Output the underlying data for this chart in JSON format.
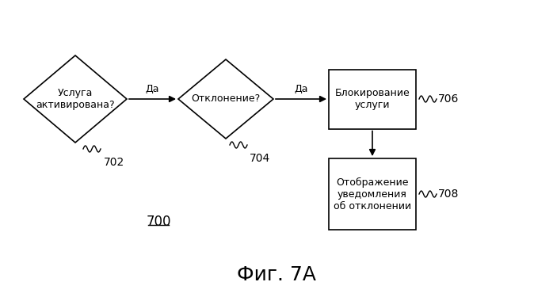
{
  "bg_color": "#ffffff",
  "title": "Фиг. 7А",
  "label_700": "700",
  "diamond1_text": "Услуга\nактивирована?",
  "diamond1_label": "702",
  "diamond2_text": "Отклонение?",
  "diamond2_label": "704",
  "box1_text": "Блокирование\nуслуги",
  "box1_label": "706",
  "box2_text": "Отображение\nуведомления\nоб отклонении",
  "box2_label": "708",
  "yes_label": "Да",
  "line_color": "#000000",
  "text_color": "#000000",
  "font_size": 9,
  "title_font_size": 18,
  "label_font_size": 10
}
